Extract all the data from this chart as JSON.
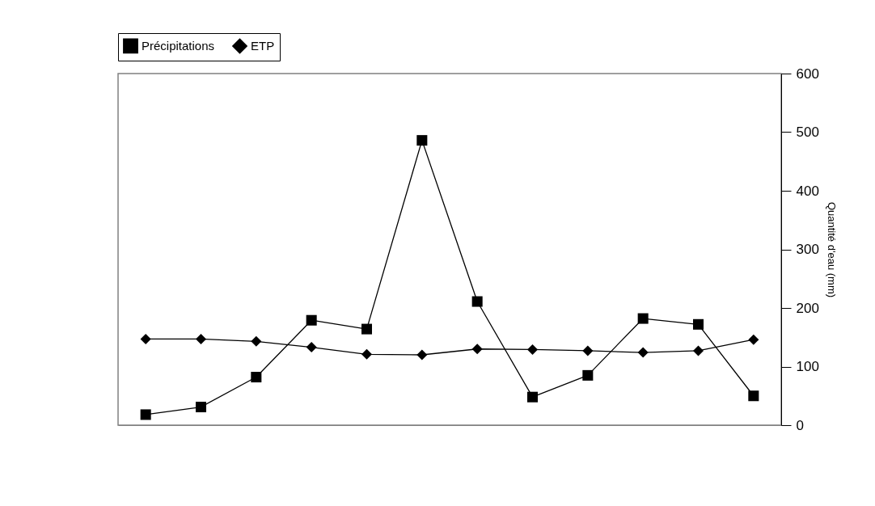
{
  "chart_data": {
    "type": "line",
    "ylabel": "Quantité d'eau (mm)",
    "categories": [
      null,
      null,
      null,
      null,
      null,
      null,
      null,
      null,
      null,
      null,
      null,
      null
    ],
    "series": [
      {
        "name": "Précipitations",
        "color": "#000000",
        "marker": "square",
        "values": [
          18,
          31,
          82,
          179,
          164,
          486,
          211,
          48,
          85,
          182,
          172,
          50
        ]
      },
      {
        "name": "ETP",
        "color": "#000000",
        "marker": "diamond",
        "values": [
          147,
          147,
          143,
          133,
          121,
          120,
          130,
          129,
          127,
          124,
          127,
          146
        ]
      }
    ],
    "ylim": [
      0,
      600
    ],
    "yticks": [
      0,
      100,
      200,
      300,
      400,
      500,
      600
    ],
    "tick_labels": "y",
    "legend": "top",
    "grid": false
  }
}
